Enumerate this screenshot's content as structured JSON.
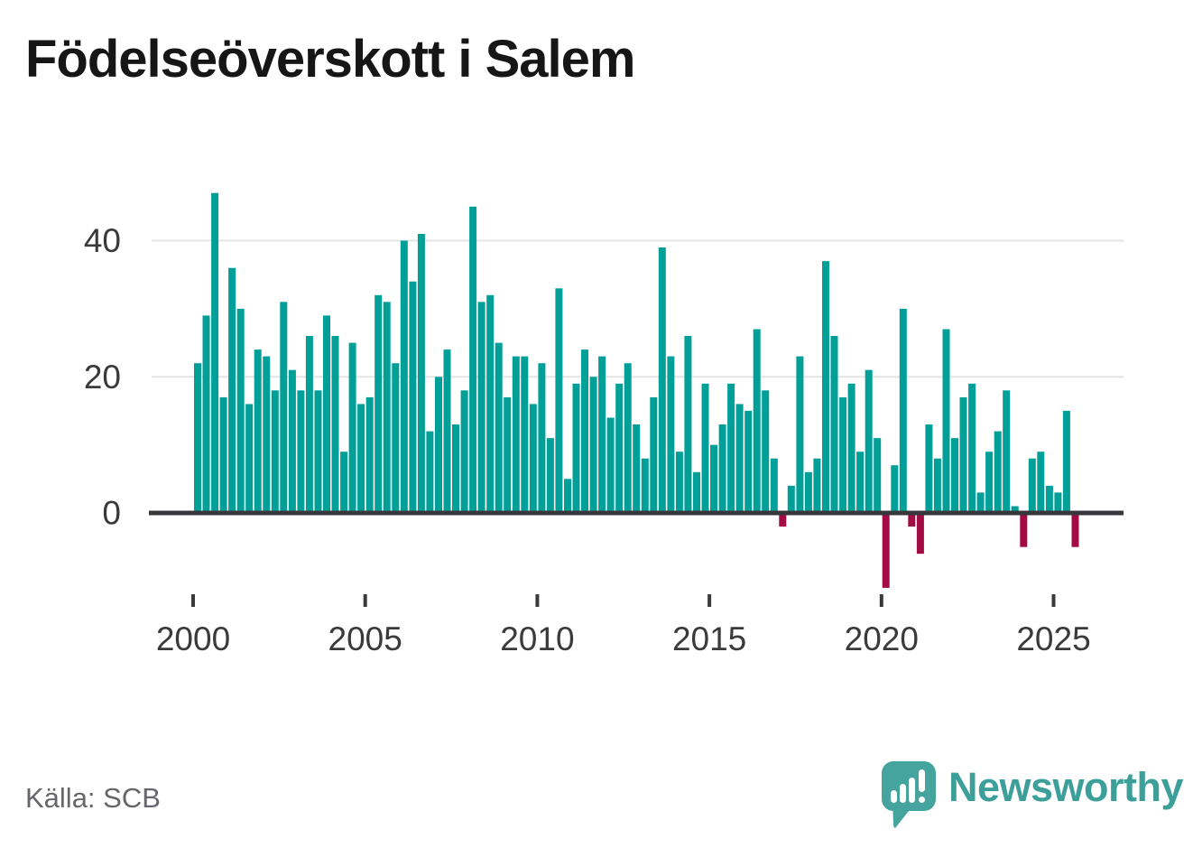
{
  "title": "Födelseöverskott i Salem",
  "source": "Källa: SCB",
  "brand": {
    "name": "Newsworthy"
  },
  "colors": {
    "positive": "#00a098",
    "negative": "#a30b45",
    "axis": "#37373b",
    "gridline": "#e4e4e4",
    "tick_label": "#3a3a3a",
    "title": "#161616",
    "source_text": "#66666d",
    "brand_teal": "#46a49e"
  },
  "chart_data": {
    "type": "bar",
    "title": "Födelseöverskott i Salem",
    "frequency": "quarterly",
    "start_period": "2000 Q1",
    "end_period": "2025 Q3",
    "x_ticks": [
      2000,
      2005,
      2010,
      2015,
      2020,
      2025
    ],
    "y_ticks": [
      0,
      20,
      40
    ],
    "ylim": [
      -13,
      49
    ],
    "grid": true,
    "legend": false,
    "values": [
      22,
      29,
      47,
      17,
      36,
      30,
      16,
      24,
      23,
      18,
      31,
      21,
      18,
      26,
      18,
      29,
      26,
      9,
      25,
      16,
      17,
      32,
      31,
      22,
      40,
      34,
      41,
      12,
      20,
      24,
      13,
      18,
      45,
      31,
      32,
      25,
      17,
      23,
      23,
      16,
      22,
      11,
      33,
      5,
      19,
      24,
      20,
      23,
      14,
      19,
      22,
      13,
      8,
      17,
      39,
      23,
      9,
      26,
      6,
      19,
      10,
      13,
      19,
      16,
      15,
      27,
      18,
      8,
      -2,
      4,
      23,
      6,
      8,
      37,
      26,
      17,
      19,
      9,
      21,
      11,
      -11,
      7,
      30,
      -2,
      -6,
      13,
      8,
      27,
      11,
      17,
      19,
      3,
      9,
      12,
      18,
      1,
      -5,
      8,
      9,
      4,
      3,
      15,
      -5
    ]
  }
}
